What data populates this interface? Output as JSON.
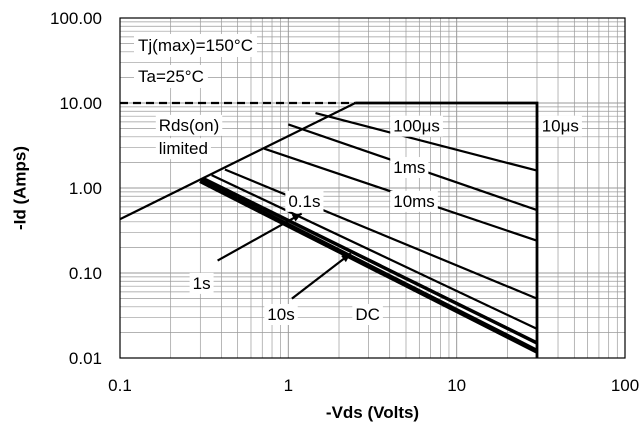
{
  "chart_data": {
    "type": "line",
    "title": "",
    "xlabel": "-Vds (Volts)",
    "ylabel": "-Id (Amps)",
    "xscale": "log",
    "yscale": "log",
    "xlim": [
      0.1,
      100
    ],
    "ylim": [
      0.01,
      100
    ],
    "grid": true,
    "x_ticks": [
      "0.1",
      "1",
      "10",
      "100"
    ],
    "y_ticks": [
      "100.00",
      "10.00",
      "1.00",
      "0.10",
      "0.01"
    ],
    "conditions": [
      "Tj(max)=150°C",
      "Ta=25°C"
    ],
    "series": [
      {
        "name": "Rds(on) limited",
        "x": [
          0.1,
          2.5
        ],
        "y": [
          0.43,
          10
        ]
      },
      {
        "name": "10μs",
        "x": [
          2.5,
          30,
          30
        ],
        "y": [
          10,
          10,
          0.01
        ]
      },
      {
        "name": "100μs",
        "x": [
          1.45,
          30
        ],
        "y": [
          7.6,
          1.6
        ]
      },
      {
        "name": "1ms",
        "x": [
          1.0,
          30
        ],
        "y": [
          5.6,
          0.55
        ]
      },
      {
        "name": "10ms",
        "x": [
          0.72,
          30
        ],
        "y": [
          2.9,
          0.24
        ]
      },
      {
        "name": "0.1s",
        "x": [
          0.42,
          30
        ],
        "y": [
          1.65,
          0.05
        ]
      },
      {
        "name": "1s",
        "x": [
          0.35,
          30
        ],
        "y": [
          1.42,
          0.022
        ]
      },
      {
        "name": "10s",
        "x": [
          0.31,
          30
        ],
        "y": [
          1.3,
          0.015
        ]
      },
      {
        "name": "DC",
        "x": [
          0.3,
          30
        ],
        "y": [
          1.22,
          0.012
        ]
      }
    ],
    "dashed_limit": {
      "name": "Id limit",
      "x": [
        0.1,
        2.5
      ],
      "y": [
        10,
        10
      ]
    },
    "annotations": [
      {
        "text": "Rds(on)",
        "x": 0.17,
        "y": 4.7
      },
      {
        "text": "limited",
        "x": 0.17,
        "y": 2.5
      },
      {
        "text": "100μs",
        "x": 4.2,
        "y": 4.6
      },
      {
        "text": "10μs",
        "x": 32,
        "y": 4.6
      },
      {
        "text": "1ms",
        "x": 4.2,
        "y": 1.5
      },
      {
        "text": "0.1s",
        "x": 1.0,
        "y": 0.6
      },
      {
        "text": "10ms",
        "x": 4.2,
        "y": 0.6
      },
      {
        "text": "1s",
        "x": 0.27,
        "y": 0.065
      },
      {
        "text": "10s",
        "x": 0.75,
        "y": 0.028
      },
      {
        "text": "DC",
        "x": 2.5,
        "y": 0.028
      }
    ]
  }
}
